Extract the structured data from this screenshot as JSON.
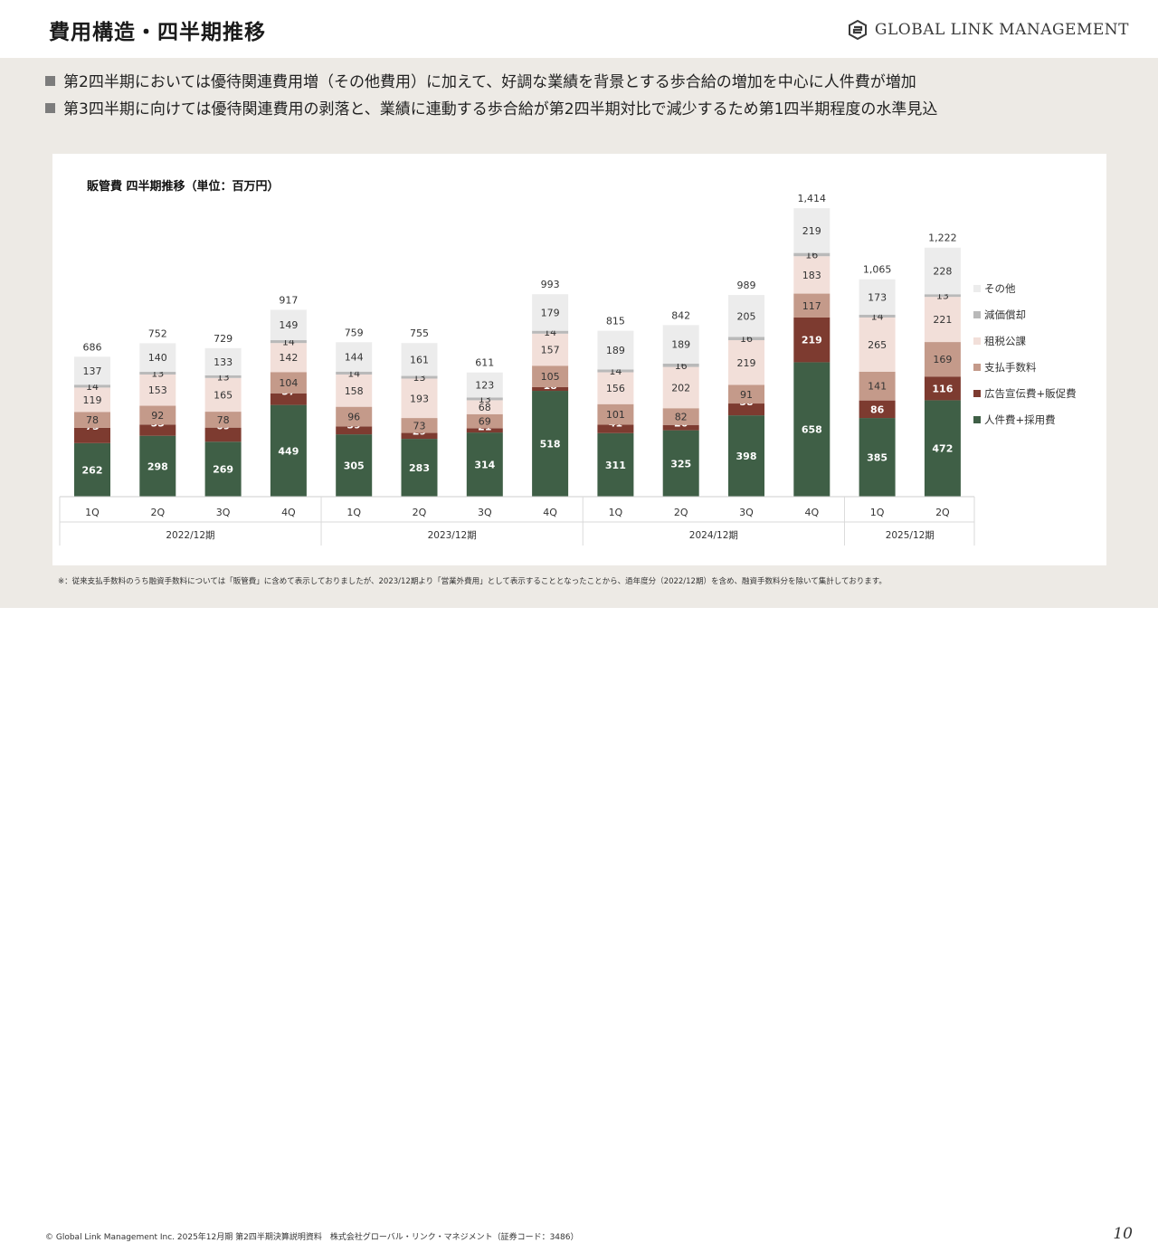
{
  "header": {
    "title": "費用構造・四半期推移",
    "logo_text": "GLOBAL LINK MANAGEMENT"
  },
  "bullets": [
    "第2四半期においては優待関連費用増（その他費用）に加えて、好調な業績を背景とする歩合給の増加を中心に人件費が増加",
    "第3四半期に向けては優待関連費用の剥落と、業績に連動する歩合給が第2四半期対比で減少するため第1四半期程度の水準見込"
  ],
  "chart_data": {
    "type": "bar",
    "stacked": true,
    "title": "販管費 四半期推移（単位：百万円）",
    "categories": [
      "1Q",
      "2Q",
      "3Q",
      "4Q",
      "1Q",
      "2Q",
      "3Q",
      "4Q",
      "1Q",
      "2Q",
      "3Q",
      "4Q",
      "1Q",
      "2Q"
    ],
    "groups": [
      {
        "label": "2022/12期",
        "count": 4
      },
      {
        "label": "2023/12期",
        "count": 4
      },
      {
        "label": "2024/12期",
        "count": 4
      },
      {
        "label": "2025/12期",
        "count": 2
      }
    ],
    "totals": [
      "686",
      "752",
      "729",
      "917",
      "759",
      "755",
      "611",
      "993",
      "815",
      "842",
      "989",
      "1,414",
      "1,065",
      "1,222"
    ],
    "series": [
      {
        "name": "人件費+採用費",
        "color": "#3f5f46",
        "label_color": "#ffffff",
        "values": [
          262,
          298,
          269,
          449,
          305,
          283,
          314,
          518,
          311,
          325,
          398,
          658,
          385,
          472
        ]
      },
      {
        "name": "広告宣伝費+販促費",
        "color": "#7d3b30",
        "label_color": "#ffffff",
        "values": [
          75,
          55,
          69,
          57,
          39,
          29,
          21,
          18,
          41,
          26,
          58,
          219,
          86,
          116
        ]
      },
      {
        "name": "支払手数料",
        "color": "#c49a8a",
        "label_color": "#333333",
        "values": [
          78,
          92,
          78,
          104,
          96,
          73,
          69,
          105,
          101,
          82,
          91,
          117,
          141,
          169
        ]
      },
      {
        "name": "租税公課",
        "color": "#f2dfd9",
        "label_color": "#333333",
        "values": [
          119,
          153,
          165,
          142,
          158,
          193,
          68,
          157,
          156,
          202,
          219,
          183,
          265,
          221
        ]
      },
      {
        "name": "減価償却",
        "color": "#b9b9b9",
        "label_color": "#333333",
        "values": [
          14,
          13,
          13,
          14,
          14,
          13,
          13,
          14,
          14,
          16,
          16,
          16,
          14,
          13
        ]
      },
      {
        "name": "その他",
        "color": "#ececec",
        "label_color": "#333333",
        "values": [
          137,
          140,
          133,
          149,
          144,
          161,
          123,
          179,
          189,
          189,
          205,
          219,
          173,
          228
        ]
      }
    ],
    "legend_position": "right",
    "ylim": [
      0,
      1500
    ],
    "grid": false
  },
  "note": "※：従来支払手数料のうち融資手数料については「販管費」に含めて表示しておりましたが、2023/12期より「営業外費用」として表示することとなったことから、過年度分（2022/12期）を含め、融資手数料分を除いて集計しております。",
  "footer": {
    "copyright": "© Global Link Management Inc. 2025年12月期 第2四半期決算説明資料　株式会社グローバル・リンク・マネジメント（証券コード：3486）",
    "page_number": "10"
  },
  "colors": {
    "background_band": "#edeae5",
    "bullet_square": "#7c7c7c"
  }
}
